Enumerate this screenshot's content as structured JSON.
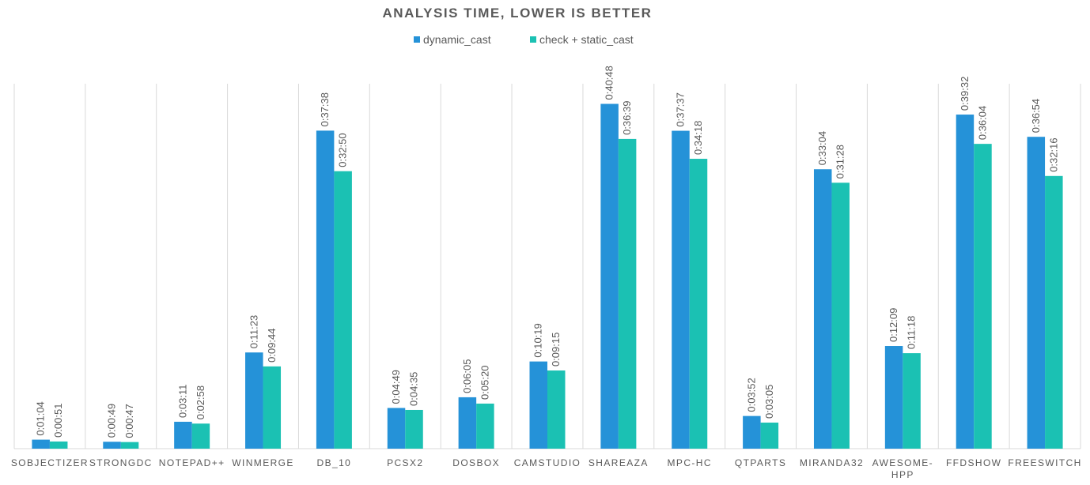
{
  "chart_data": {
    "type": "bar",
    "title": "ANALYSIS TIME, LOWER IS BETTER",
    "categories": [
      "SOBJECTIZER",
      "STRONGDC",
      "NOTEPAD++",
      "WINMERGE",
      "DB_10",
      "PCSX2",
      "DOSBOX",
      "CAMSTUDIO",
      "SHAREAZA",
      "MPC-HC",
      "QTPARTS",
      "MIRANDA32",
      "AWESOME-HPP",
      "FFDSHOW",
      "FREESWITCH"
    ],
    "series": [
      {
        "name": "dynamic_cast",
        "color": "#2592d8",
        "values": [
          "0:01:04",
          "0:00:49",
          "0:03:11",
          "0:11:23",
          "0:37:38",
          "0:04:49",
          "0:06:05",
          "0:10:19",
          "0:40:48",
          "0:37:37",
          "0:03:52",
          "0:33:04",
          "0:12:09",
          "0:39:32",
          "0:36:54"
        ]
      },
      {
        "name": "check + static_cast",
        "color": "#1bc1b3",
        "values": [
          "0:00:51",
          "0:00:47",
          "0:02:58",
          "0:09:44",
          "0:32:50",
          "0:04:35",
          "0:05:20",
          "0:09:15",
          "0:36:39",
          "0:34:18",
          "0:03:05",
          "0:31:28",
          "0:11:18",
          "0:36:04",
          "0:32:16"
        ]
      }
    ],
    "y_axis": {
      "unit": "h:mm:ss",
      "min": "0:00:00",
      "max": "0:42:30",
      "visible": false
    },
    "grid": {
      "horizontal": false,
      "vertical_separators": true
    },
    "legend_position": "top-center",
    "data_labels": "rotated vertical above bars"
  }
}
